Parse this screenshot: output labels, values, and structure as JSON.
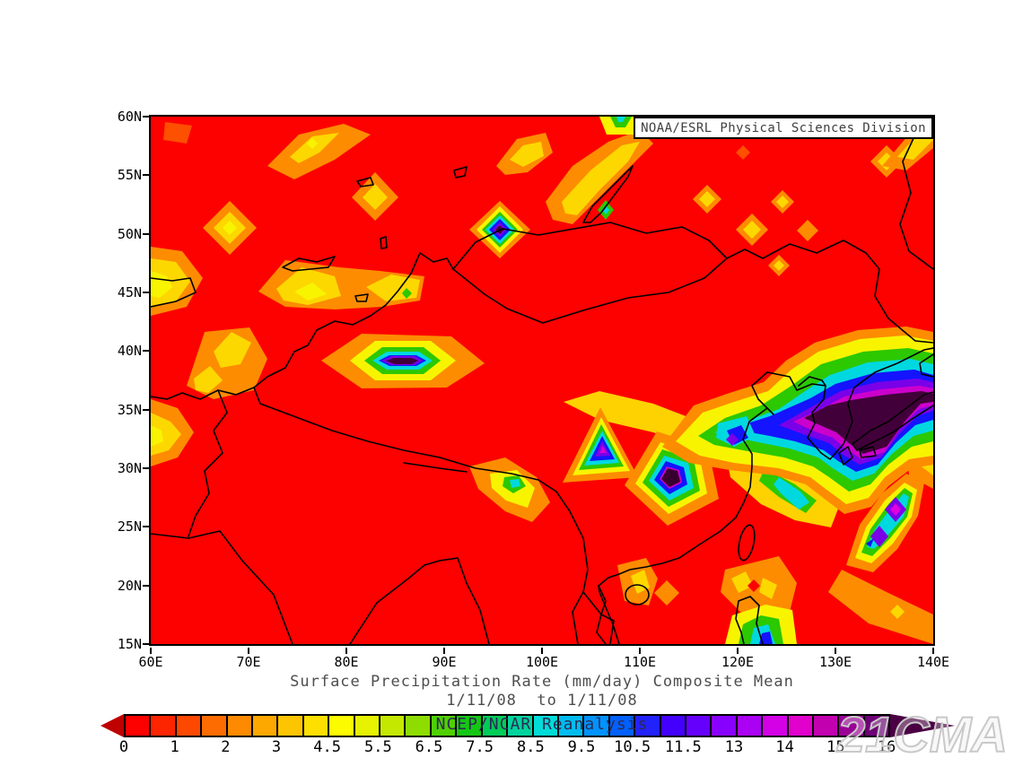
{
  "figure": {
    "credit": "NOAA/ESRL Physical Sciences Division",
    "watermark": "21CMA",
    "background_color": "#ffffff"
  },
  "title": {
    "line1": "Surface Precipitation Rate (mm/day) Composite Mean",
    "line2": "1/11/08  to 1/11/08"
  },
  "map": {
    "overlay_label": "NCEP/NCAR Reanalysis",
    "lat_ticks": [
      "60N",
      "55N",
      "50N",
      "45N",
      "40N",
      "35N",
      "30N",
      "25N",
      "20N",
      "15N"
    ],
    "lon_ticks": [
      "60E",
      "70E",
      "80E",
      "90E",
      "100E",
      "110E",
      "120E",
      "130E",
      "140E"
    ]
  },
  "colorbar": {
    "boundary_labels": [
      "0",
      "1",
      "2",
      "3",
      "4.5",
      "5.5",
      "6.5",
      "7.5",
      "8.5",
      "9.5",
      "10.5",
      "11.5",
      "13",
      "14",
      "15",
      "16"
    ],
    "segment_colors": [
      "#fd0000",
      "#fd2400",
      "#fd4800",
      "#fd6c00",
      "#fd8a00",
      "#fda800",
      "#fdc400",
      "#fde000",
      "#fdfb00",
      "#e6f200",
      "#c4e800",
      "#8edc00",
      "#50d000",
      "#16c614",
      "#00cc58",
      "#00d49c",
      "#00dcd8",
      "#00bcee",
      "#0092fd",
      "#0060fd",
      "#2222fd",
      "#4400fd",
      "#6600fd",
      "#8800fd",
      "#aa00f4",
      "#d400e6",
      "#e200cc",
      "#c200b0",
      "#9a0096",
      "#6e0076"
    ],
    "below_min_color": "#bf0000",
    "above_max_color": "#4a0042"
  },
  "chart_data": {
    "type": "heatmap",
    "title": "Surface Precipitation Rate (mm/day) Composite Mean",
    "subtitle": "1/11/08  to 1/11/08",
    "units": "mm/day",
    "dataset": "NCEP/NCAR Reanalysis",
    "provider": "NOAA/ESRL Physical Sciences Division",
    "lon_range_deg_east": [
      60,
      140
    ],
    "lat_range_deg_north": [
      15,
      60
    ],
    "lon_tick_labels": [
      "60E",
      "70E",
      "80E",
      "90E",
      "100E",
      "110E",
      "120E",
      "130E",
      "140E"
    ],
    "lat_tick_labels": [
      "15N",
      "20N",
      "25N",
      "30N",
      "35N",
      "40N",
      "45N",
      "50N",
      "55N",
      "60N"
    ],
    "colorbar_levels": [
      0,
      1,
      2,
      3,
      4.5,
      5.5,
      6.5,
      7.5,
      8.5,
      9.5,
      10.5,
      11.5,
      13,
      14,
      15,
      16
    ],
    "background_value_range": "0-1 mm/day (red) over most of the domain",
    "notable_maxima": [
      {
        "lon_e": 86,
        "lat_n": 39,
        "peak": ">16",
        "shape": "hexagonal bullseye, Tarim/Tibet"
      },
      {
        "lon_e": 95.5,
        "lat_n": 50.5,
        "peak": ">16",
        "shape": "diamond bullseye on Russia–Mongolia border"
      },
      {
        "lon_e": 106.5,
        "lat_n": 32.5,
        "peak": "~14",
        "shape": "small triangular bullseye, Sichuan"
      },
      {
        "lon_e": 113,
        "lat_n": 29,
        "peak": ">16",
        "shape": "pentagon bullseye, SE China"
      },
      {
        "lon_e": 130,
        "lat_n": 36,
        "peak": ">16",
        "shape": "large elongated band over Korea Strait / Japan"
      },
      {
        "lon_e": 120.5,
        "lat_n": 33,
        "peak": "~11",
        "shape": "cyan-blue patch, Yellow Sea coast"
      },
      {
        "lon_e": 134.5,
        "lat_n": 22.5,
        "peak": "~14",
        "peak_note": "two purple cores in diagonal cyan band SE of Japan"
      },
      {
        "lon_e": 97,
        "lat_n": 28,
        "peak": "~9",
        "shape": "small cyan spot, eastern Himalaya"
      },
      {
        "lon_e": 106,
        "lat_n": 51.5,
        "peak": "~8",
        "shape": "green spot at south tip of Lake Baikal"
      },
      {
        "lon_e": 123,
        "lat_n": 15.5,
        "peak": "~11",
        "shape": "green-blue spot at bottom edge near Luzon"
      }
    ]
  }
}
